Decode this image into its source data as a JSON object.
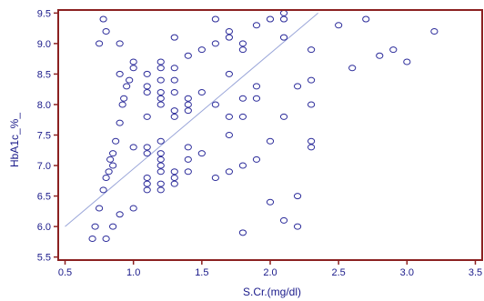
{
  "chart_data": {
    "type": "scatter",
    "xlabel": "S.Cr.(mg/dl)",
    "ylabel": "HbA1c_%_",
    "xlim": [
      0.45,
      3.55
    ],
    "ylim": [
      5.45,
      9.55
    ],
    "x_ticks": [
      0.5,
      1.0,
      1.5,
      2.0,
      2.5,
      3.0,
      3.5
    ],
    "x_tick_labels": [
      "0.5",
      "1.0",
      "1.5",
      "2.0",
      "2.5",
      "3.0",
      "3.5"
    ],
    "y_ticks": [
      5.5,
      6.0,
      6.5,
      7.0,
      7.5,
      8.0,
      8.5,
      9.0,
      9.5
    ],
    "y_tick_labels": [
      "5.5",
      "6.0",
      "6.5",
      "7.0",
      "7.5",
      "8.0",
      "8.5",
      "9.0",
      "9.5"
    ],
    "grid": false,
    "colors": {
      "frame": "#8b2020",
      "marker": "#2b2b9a",
      "trend": "#9aa6d9",
      "text": "#1a1a8a"
    },
    "trendline": {
      "x": [
        0.5,
        2.35
      ],
      "y": [
        6.0,
        9.5
      ]
    },
    "points": [
      {
        "x": 0.7,
        "y": 5.8
      },
      {
        "x": 0.8,
        "y": 5.8
      },
      {
        "x": 0.72,
        "y": 6.0
      },
      {
        "x": 0.85,
        "y": 6.0
      },
      {
        "x": 0.9,
        "y": 6.2
      },
      {
        "x": 1.0,
        "y": 6.3
      },
      {
        "x": 0.75,
        "y": 6.3
      },
      {
        "x": 0.78,
        "y": 6.6
      },
      {
        "x": 0.8,
        "y": 6.8
      },
      {
        "x": 0.82,
        "y": 6.9
      },
      {
        "x": 0.85,
        "y": 7.0
      },
      {
        "x": 0.83,
        "y": 7.1
      },
      {
        "x": 0.85,
        "y": 7.2
      },
      {
        "x": 0.87,
        "y": 7.4
      },
      {
        "x": 0.9,
        "y": 7.7
      },
      {
        "x": 0.92,
        "y": 8.0
      },
      {
        "x": 0.93,
        "y": 8.1
      },
      {
        "x": 0.95,
        "y": 8.3
      },
      {
        "x": 0.97,
        "y": 8.4
      },
      {
        "x": 1.0,
        "y": 8.6
      },
      {
        "x": 1.0,
        "y": 8.7
      },
      {
        "x": 0.9,
        "y": 8.5
      },
      {
        "x": 0.9,
        "y": 9.0
      },
      {
        "x": 0.75,
        "y": 9.0
      },
      {
        "x": 0.78,
        "y": 9.4
      },
      {
        "x": 0.8,
        "y": 9.2
      },
      {
        "x": 1.0,
        "y": 7.3
      },
      {
        "x": 1.1,
        "y": 6.6
      },
      {
        "x": 1.1,
        "y": 6.7
      },
      {
        "x": 1.1,
        "y": 6.8
      },
      {
        "x": 1.1,
        "y": 7.2
      },
      {
        "x": 1.1,
        "y": 7.3
      },
      {
        "x": 1.1,
        "y": 7.8
      },
      {
        "x": 1.1,
        "y": 8.2
      },
      {
        "x": 1.1,
        "y": 8.3
      },
      {
        "x": 1.1,
        "y": 8.5
      },
      {
        "x": 1.2,
        "y": 6.6
      },
      {
        "x": 1.2,
        "y": 6.7
      },
      {
        "x": 1.2,
        "y": 6.9
      },
      {
        "x": 1.2,
        "y": 7.0
      },
      {
        "x": 1.2,
        "y": 7.1
      },
      {
        "x": 1.2,
        "y": 7.2
      },
      {
        "x": 1.2,
        "y": 7.4
      },
      {
        "x": 1.2,
        "y": 8.0
      },
      {
        "x": 1.2,
        "y": 8.1
      },
      {
        "x": 1.2,
        "y": 8.2
      },
      {
        "x": 1.2,
        "y": 8.4
      },
      {
        "x": 1.2,
        "y": 8.6
      },
      {
        "x": 1.2,
        "y": 8.7
      },
      {
        "x": 1.3,
        "y": 6.7
      },
      {
        "x": 1.3,
        "y": 6.8
      },
      {
        "x": 1.3,
        "y": 6.9
      },
      {
        "x": 1.3,
        "y": 7.8
      },
      {
        "x": 1.3,
        "y": 7.9
      },
      {
        "x": 1.3,
        "y": 8.2
      },
      {
        "x": 1.3,
        "y": 8.4
      },
      {
        "x": 1.3,
        "y": 8.6
      },
      {
        "x": 1.3,
        "y": 9.1
      },
      {
        "x": 1.4,
        "y": 6.9
      },
      {
        "x": 1.4,
        "y": 7.1
      },
      {
        "x": 1.4,
        "y": 7.3
      },
      {
        "x": 1.4,
        "y": 7.9
      },
      {
        "x": 1.4,
        "y": 8.0
      },
      {
        "x": 1.4,
        "y": 8.1
      },
      {
        "x": 1.4,
        "y": 8.8
      },
      {
        "x": 1.5,
        "y": 7.2
      },
      {
        "x": 1.5,
        "y": 8.2
      },
      {
        "x": 1.5,
        "y": 8.9
      },
      {
        "x": 1.6,
        "y": 6.8
      },
      {
        "x": 1.6,
        "y": 8.0
      },
      {
        "x": 1.6,
        "y": 9.0
      },
      {
        "x": 1.6,
        "y": 9.4
      },
      {
        "x": 1.7,
        "y": 6.9
      },
      {
        "x": 1.7,
        "y": 7.5
      },
      {
        "x": 1.7,
        "y": 7.8
      },
      {
        "x": 1.7,
        "y": 8.5
      },
      {
        "x": 1.7,
        "y": 9.1
      },
      {
        "x": 1.7,
        "y": 9.2
      },
      {
        "x": 1.8,
        "y": 5.9
      },
      {
        "x": 1.8,
        "y": 7.0
      },
      {
        "x": 1.8,
        "y": 7.8
      },
      {
        "x": 1.8,
        "y": 8.1
      },
      {
        "x": 1.8,
        "y": 8.9
      },
      {
        "x": 1.8,
        "y": 9.0
      },
      {
        "x": 1.9,
        "y": 7.1
      },
      {
        "x": 1.9,
        "y": 8.1
      },
      {
        "x": 1.9,
        "y": 8.3
      },
      {
        "x": 1.9,
        "y": 9.3
      },
      {
        "x": 2.0,
        "y": 6.4
      },
      {
        "x": 2.0,
        "y": 7.4
      },
      {
        "x": 2.0,
        "y": 9.4
      },
      {
        "x": 2.1,
        "y": 6.1
      },
      {
        "x": 2.1,
        "y": 7.8
      },
      {
        "x": 2.1,
        "y": 9.1
      },
      {
        "x": 2.1,
        "y": 9.4
      },
      {
        "x": 2.1,
        "y": 9.5
      },
      {
        "x": 2.2,
        "y": 6.0
      },
      {
        "x": 2.2,
        "y": 6.5
      },
      {
        "x": 2.2,
        "y": 8.3
      },
      {
        "x": 2.3,
        "y": 7.3
      },
      {
        "x": 2.3,
        "y": 7.4
      },
      {
        "x": 2.3,
        "y": 8.0
      },
      {
        "x": 2.3,
        "y": 8.4
      },
      {
        "x": 2.3,
        "y": 8.9
      },
      {
        "x": 2.5,
        "y": 9.3
      },
      {
        "x": 2.6,
        "y": 8.6
      },
      {
        "x": 2.7,
        "y": 9.4
      },
      {
        "x": 2.8,
        "y": 8.8
      },
      {
        "x": 2.9,
        "y": 8.9
      },
      {
        "x": 3.0,
        "y": 8.7
      },
      {
        "x": 3.2,
        "y": 9.2
      }
    ]
  }
}
